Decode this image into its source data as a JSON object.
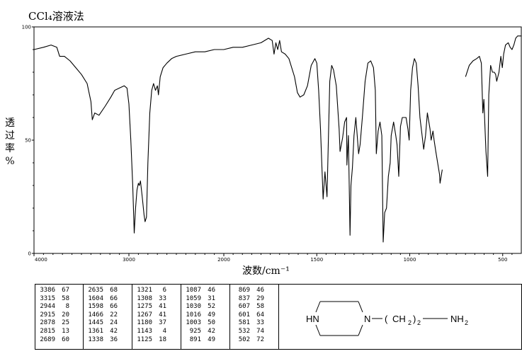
{
  "title": "CCl₄溶液法",
  "ylabel_chars": [
    "透",
    "过",
    "率",
    "%"
  ],
  "xlabel": "波数/cm⁻¹",
  "chart_data": {
    "type": "line",
    "title": "CCl₄溶液法",
    "xlabel": "波数/cm⁻¹",
    "ylabel": "透过率 %",
    "xlim": [
      4000,
      400
    ],
    "ylim": [
      0,
      100
    ],
    "x_ticks": [
      "4000",
      "3000",
      "2000",
      "1500",
      "1000",
      "500"
    ],
    "y_ticks": [
      "100",
      "50",
      "0"
    ],
    "series": [
      {
        "segments": [
          [
            [
              4000,
              90
            ],
            [
              3900,
              91
            ],
            [
              3820,
              92
            ],
            [
              3760,
              91
            ],
            [
              3730,
              87
            ],
            [
              3680,
              87
            ],
            [
              3620,
              85
            ],
            [
              3560,
              82
            ],
            [
              3500,
              79
            ],
            [
              3440,
              75
            ],
            [
              3400,
              67
            ],
            [
              3386,
              59
            ],
            [
              3360,
              62
            ],
            [
              3315,
              61
            ],
            [
              3250,
              65
            ],
            [
              3190,
              69
            ],
            [
              3150,
              72
            ],
            [
              3100,
              73
            ],
            [
              3050,
              74
            ],
            [
              3020,
              73
            ],
            [
              3000,
              66
            ],
            [
              2980,
              50
            ],
            [
              2960,
              30
            ],
            [
              2944,
              9
            ],
            [
              2930,
              20
            ],
            [
              2915,
              28
            ],
            [
              2900,
              31
            ],
            [
              2890,
              30
            ],
            [
              2878,
              32
            ],
            [
              2860,
              25
            ],
            [
              2840,
              17
            ],
            [
              2830,
              14
            ],
            [
              2815,
              16
            ],
            [
              2800,
              40
            ],
            [
              2780,
              62
            ],
            [
              2760,
              72
            ],
            [
              2740,
              75
            ],
            [
              2720,
              72
            ],
            [
              2700,
              74
            ],
            [
              2689,
              70
            ],
            [
              2670,
              78
            ],
            [
              2640,
              82
            ],
            [
              2600,
              84
            ],
            [
              2550,
              86
            ],
            [
              2500,
              87
            ],
            [
              2400,
              88
            ],
            [
              2300,
              89
            ],
            [
              2200,
              89
            ],
            [
              2100,
              90
            ],
            [
              2000,
              90
            ],
            [
              1950,
              91
            ],
            [
              1900,
              91
            ],
            [
              1850,
              92
            ],
            [
              1800,
              93
            ],
            [
              1760,
              95
            ],
            [
              1740,
              94
            ],
            [
              1730,
              88
            ],
            [
              1720,
              93
            ],
            [
              1710,
              90
            ],
            [
              1700,
              94
            ],
            [
              1690,
              89
            ],
            [
              1670,
              88
            ],
            [
              1650,
              86
            ],
            [
              1620,
              78
            ],
            [
              1604,
              71
            ],
            [
              1590,
              69
            ],
            [
              1570,
              70
            ],
            [
              1550,
              74
            ],
            [
              1530,
              83
            ],
            [
              1510,
              86
            ],
            [
              1500,
              84
            ],
            [
              1490,
              72
            ],
            [
              1480,
              55
            ],
            [
              1466,
              24
            ],
            [
              1456,
              36
            ],
            [
              1445,
              25
            ],
            [
              1430,
              76
            ],
            [
              1420,
              83
            ],
            [
              1410,
              81
            ],
            [
              1395,
              74
            ],
            [
              1380,
              55
            ],
            [
              1375,
              45
            ],
            [
              1361,
              51
            ],
            [
              1350,
              58
            ],
            [
              1340,
              60
            ],
            [
              1338,
              39
            ],
            [
              1330,
              52
            ],
            [
              1321,
              8
            ],
            [
              1316,
              30
            ],
            [
              1308,
              38
            ],
            [
              1300,
              52
            ],
            [
              1290,
              60
            ],
            [
              1275,
              44
            ],
            [
              1267,
              48
            ],
            [
              1255,
              60
            ],
            [
              1240,
              76
            ],
            [
              1225,
              84
            ],
            [
              1210,
              85
            ],
            [
              1195,
              82
            ],
            [
              1185,
              72
            ],
            [
              1180,
              44
            ],
            [
              1170,
              54
            ],
            [
              1160,
              58
            ],
            [
              1150,
              52
            ],
            [
              1143,
              5
            ],
            [
              1135,
              18
            ],
            [
              1125,
              20
            ],
            [
              1115,
              34
            ],
            [
              1105,
              40
            ],
            [
              1100,
              52
            ],
            [
              1087,
              58
            ],
            [
              1075,
              52
            ],
            [
              1068,
              48
            ],
            [
              1059,
              34
            ],
            [
              1050,
              56
            ],
            [
              1040,
              60
            ],
            [
              1030,
              60
            ],
            [
              1020,
              60
            ],
            [
              1010,
              55
            ],
            [
              1003,
              50
            ],
            [
              995,
              72
            ],
            [
              985,
              82
            ],
            [
              975,
              86
            ],
            [
              965,
              84
            ],
            [
              955,
              74
            ],
            [
              945,
              60
            ],
            [
              935,
              53
            ],
            [
              925,
              46
            ],
            [
              915,
              52
            ],
            [
              905,
              62
            ],
            [
              891,
              55
            ],
            [
              885,
              50
            ],
            [
              875,
              54
            ],
            [
              869,
              50
            ],
            [
              860,
              45
            ],
            [
              850,
              40
            ],
            [
              840,
              35
            ],
            [
              837,
              31
            ],
            [
              825,
              37
            ]
          ],
          [
            [
              700,
              78
            ],
            [
              680,
              83
            ],
            [
              660,
              85
            ],
            [
              640,
              86
            ],
            [
              625,
              87
            ],
            [
              615,
              84
            ],
            [
              607,
              62
            ],
            [
              601,
              68
            ],
            [
              595,
              55
            ],
            [
              590,
              45
            ],
            [
              581,
              34
            ],
            [
              575,
              70
            ],
            [
              565,
              83
            ],
            [
              555,
              80
            ],
            [
              545,
              80
            ],
            [
              538,
              79
            ],
            [
              532,
              76
            ],
            [
              520,
              80
            ],
            [
              510,
              87
            ],
            [
              502,
              82
            ],
            [
              495,
              88
            ],
            [
              485,
              92
            ],
            [
              470,
              93
            ],
            [
              460,
              91
            ],
            [
              450,
              90
            ],
            [
              440,
              92
            ],
            [
              430,
              95
            ],
            [
              420,
              96
            ],
            [
              400,
              96
            ]
          ]
        ]
      }
    ],
    "peak_table_columns": [
      [
        [
          "3386",
          "67"
        ],
        [
          "3315",
          "58"
        ],
        [
          "2944",
          "8"
        ],
        [
          "2915",
          "20"
        ],
        [
          "2878",
          "25"
        ],
        [
          "2815",
          "13"
        ],
        [
          "2689",
          "60"
        ]
      ],
      [
        [
          "2635",
          "68"
        ],
        [
          "1604",
          "66"
        ],
        [
          "1598",
          "66"
        ],
        [
          "1466",
          "22"
        ],
        [
          "1445",
          "24"
        ],
        [
          "1361",
          "42"
        ],
        [
          "1338",
          "36"
        ]
      ],
      [
        [
          "1321",
          "6"
        ],
        [
          "1308",
          "33"
        ],
        [
          "1275",
          "41"
        ],
        [
          "1267",
          "41"
        ],
        [
          "1180",
          "37"
        ],
        [
          "1143",
          "4"
        ],
        [
          "1125",
          "18"
        ]
      ],
      [
        [
          "1087",
          "46"
        ],
        [
          "1059",
          "31"
        ],
        [
          "1030",
          "52"
        ],
        [
          "1016",
          "49"
        ],
        [
          "1003",
          "50"
        ],
        [
          "925",
          "42"
        ],
        [
          "891",
          "49"
        ]
      ],
      [
        [
          "869",
          "46"
        ],
        [
          "837",
          "29"
        ],
        [
          "607",
          "58"
        ],
        [
          "601",
          "64"
        ],
        [
          "581",
          "33"
        ],
        [
          "532",
          "74"
        ],
        [
          "502",
          "72"
        ]
      ]
    ]
  },
  "structure": {
    "hn": "HN",
    "n": "N",
    "chain_open": "(",
    "ch2": "CH",
    "ch2_sub": "2",
    "chain_close": ")",
    "chain_count": "2",
    "nh2": "NH",
    "nh2_sub": "2"
  }
}
